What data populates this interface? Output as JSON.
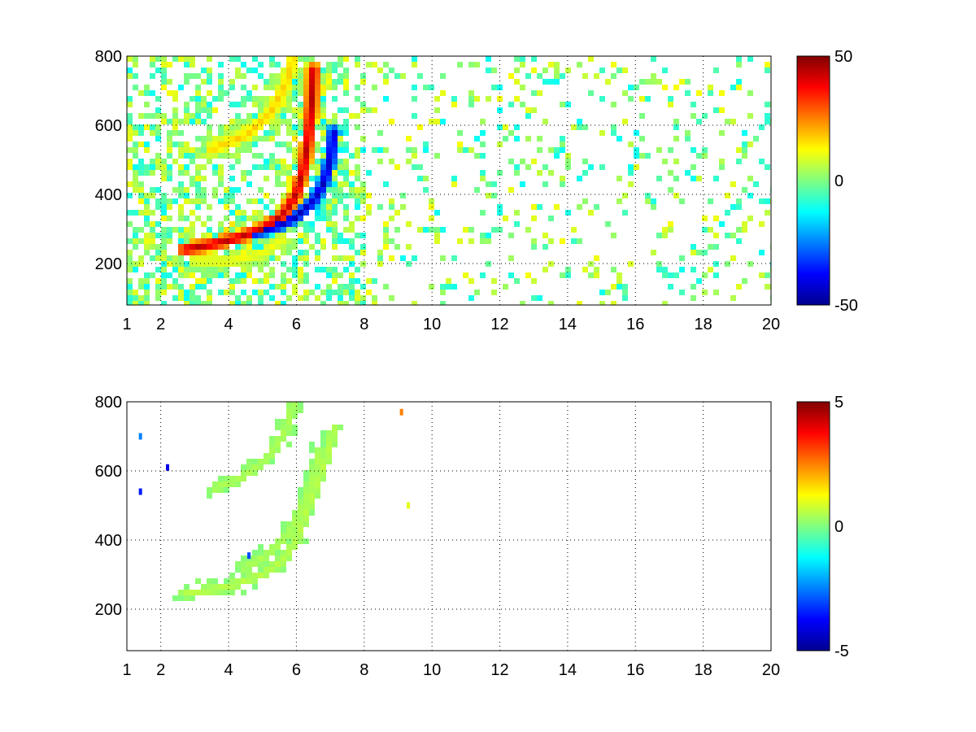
{
  "chart_data": [
    {
      "type": "heatmap",
      "title": "",
      "xlabel": "",
      "ylabel": "",
      "xlim": [
        1,
        20
      ],
      "ylim": [
        80,
        800
      ],
      "x_ticks": [
        1,
        2,
        4,
        6,
        8,
        10,
        12,
        14,
        16,
        18,
        20
      ],
      "x_tick_labels": [
        "1",
        "2",
        "4",
        "6",
        "8",
        "10",
        "12",
        "14",
        "16",
        "18",
        "20"
      ],
      "y_ticks": [
        200,
        400,
        600,
        800
      ],
      "y_tick_labels": [
        "200",
        "400",
        "600",
        "800"
      ],
      "grid": true,
      "colormap": "jet",
      "clim": [
        -50,
        50
      ],
      "colorbar_ticks": [
        -50,
        0,
        50
      ],
      "colorbar_tick_labels": [
        "-50",
        "0",
        "50"
      ],
      "features": [
        {
          "name": "positive ridge",
          "value": 45,
          "points": [
            [
              2.7,
              240
            ],
            [
              3.5,
              255
            ],
            [
              4.3,
              275
            ],
            [
              5.0,
              300
            ],
            [
              5.6,
              340
            ],
            [
              6.0,
              400
            ],
            [
              6.2,
              470
            ],
            [
              6.35,
              560
            ],
            [
              6.45,
              660
            ],
            [
              6.5,
              760
            ]
          ]
        },
        {
          "name": "negative ridge",
          "value": -45,
          "points": [
            [
              4.8,
              290
            ],
            [
              5.5,
              310
            ],
            [
              6.0,
              335
            ],
            [
              6.5,
              380
            ],
            [
              6.8,
              430
            ],
            [
              7.0,
              500
            ],
            [
              7.1,
              580
            ]
          ]
        },
        {
          "name": "upper weak arc",
          "value": 18,
          "points": [
            [
              3.5,
              530
            ],
            [
              4.5,
              570
            ],
            [
              5.2,
              630
            ],
            [
              5.7,
              720
            ],
            [
              5.9,
              790
            ]
          ]
        },
        {
          "name": "lower weak arc",
          "value": 12,
          "points": [
            [
              3.0,
              210
            ],
            [
              4.0,
              205
            ],
            [
              5.0,
              230
            ],
            [
              5.6,
              270
            ]
          ]
        }
      ],
      "background_noise_amplitude": 12
    },
    {
      "type": "heatmap",
      "title": "",
      "xlabel": "",
      "ylabel": "",
      "xlim": [
        1,
        20
      ],
      "ylim": [
        80,
        800
      ],
      "x_ticks": [
        1,
        2,
        4,
        6,
        8,
        10,
        12,
        14,
        16,
        18,
        20
      ],
      "x_tick_labels": [
        "1",
        "2",
        "4",
        "6",
        "8",
        "10",
        "12",
        "14",
        "16",
        "18",
        "20"
      ],
      "y_ticks": [
        200,
        400,
        600,
        800
      ],
      "y_tick_labels": [
        "200",
        "400",
        "600",
        "800"
      ],
      "grid": true,
      "colormap": "jet",
      "clim": [
        -5,
        5
      ],
      "colorbar_ticks": [
        -5,
        0,
        5
      ],
      "colorbar_tick_labels": [
        "-5",
        "0",
        "5"
      ],
      "features": [
        {
          "name": "main arc",
          "value": 0.6,
          "points": [
            [
              2.7,
              245
            ],
            [
              3.5,
              255
            ],
            [
              4.3,
              275
            ],
            [
              5.0,
              300
            ],
            [
              5.6,
              340
            ],
            [
              6.0,
              400
            ],
            [
              6.3,
              480
            ],
            [
              6.6,
              560
            ],
            [
              6.9,
              640
            ],
            [
              7.1,
              720
            ]
          ]
        },
        {
          "name": "upper arc",
          "value": 0.5,
          "points": [
            [
              3.6,
              550
            ],
            [
              4.4,
              580
            ],
            [
              5.2,
              640
            ],
            [
              5.7,
              720
            ],
            [
              5.9,
              790
            ]
          ]
        },
        {
          "name": "inner ridge",
          "value": 0.5,
          "points": [
            [
              4.5,
              320
            ],
            [
              5.2,
              360
            ],
            [
              5.8,
              420
            ],
            [
              6.2,
              500
            ],
            [
              6.5,
              580
            ],
            [
              6.7,
              660
            ]
          ]
        }
      ],
      "sparse_outliers": [
        {
          "x": 9.1,
          "y": 770,
          "value": 2.5
        },
        {
          "x": 1.4,
          "y": 700,
          "value": -2.5
        },
        {
          "x": 1.4,
          "y": 540,
          "value": -3.5
        },
        {
          "x": 2.2,
          "y": 610,
          "value": -4
        },
        {
          "x": 4.6,
          "y": 355,
          "value": -3
        },
        {
          "x": 9.3,
          "y": 500,
          "value": 1
        }
      ]
    }
  ]
}
